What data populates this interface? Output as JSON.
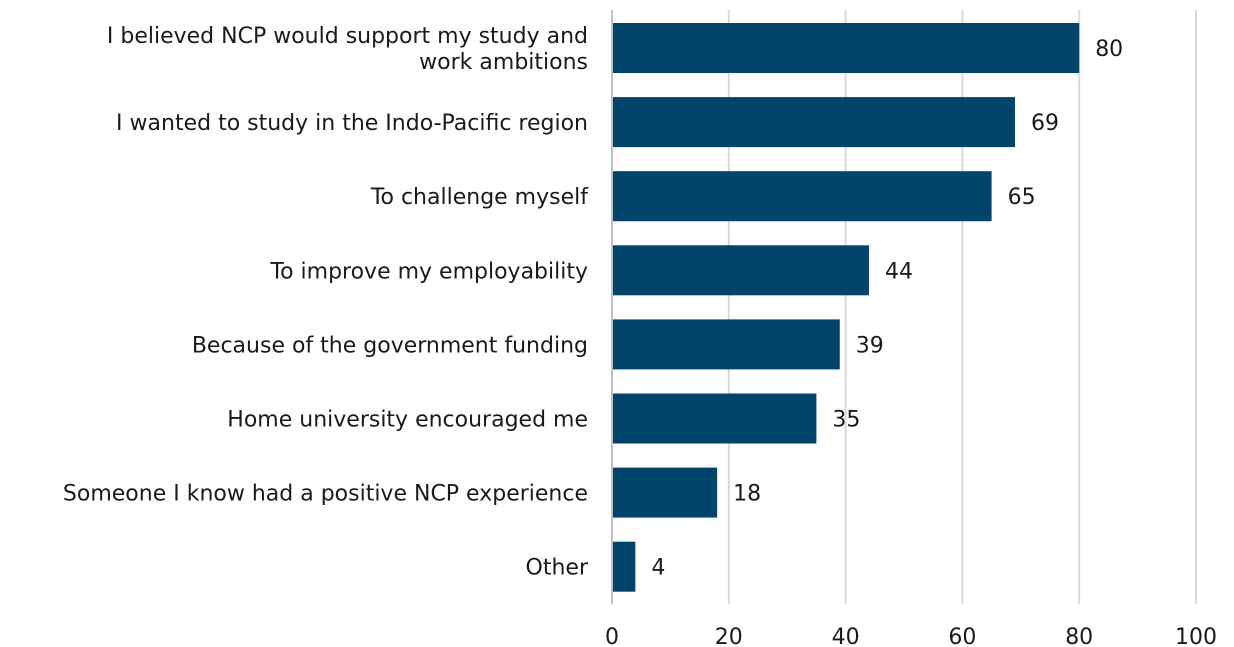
{
  "chart_data": {
    "type": "bar",
    "orientation": "horizontal",
    "categories": [
      [
        "I believed NCP would support my study and",
        "work ambitions"
      ],
      [
        "I wanted to study in the Indo-Pacific region"
      ],
      [
        "To challenge myself"
      ],
      [
        "To improve my employability"
      ],
      [
        "Because of the government funding"
      ],
      [
        "Home university encouraged me"
      ],
      [
        "Someone I know had a positive NCP experience"
      ],
      [
        "Other"
      ]
    ],
    "values": [
      80,
      69,
      65,
      44,
      39,
      35,
      18,
      4
    ],
    "value_labels": [
      "80",
      "69",
      "65",
      "44",
      "39",
      "35",
      "18",
      "4"
    ],
    "xlim": [
      0,
      100
    ],
    "xticks": [
      0,
      20,
      40,
      60,
      80,
      100
    ],
    "xtick_labels": [
      "0",
      "20",
      "40",
      "60",
      "80",
      "100"
    ],
    "title": "",
    "xlabel": "",
    "ylabel": "",
    "grid": "vertical",
    "legend": "none",
    "colors": {
      "bar": "#00436b"
    }
  }
}
